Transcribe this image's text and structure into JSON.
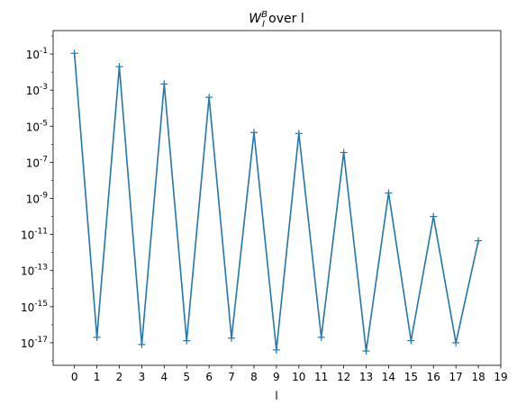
{
  "chart_data": {
    "type": "line",
    "title": {
      "main": "W",
      "sub": "l",
      "sup": "B",
      "rest": " over l"
    },
    "xlabel": "l",
    "ylabel": "",
    "yscale": "log",
    "xlim": [
      -0.95,
      19.0
    ],
    "ylim_exp": [
      -18.25,
      0.3
    ],
    "x_ticks": [
      "0",
      "1",
      "2",
      "3",
      "4",
      "5",
      "6",
      "7",
      "8",
      "9",
      "10",
      "11",
      "12",
      "13",
      "14",
      "15",
      "16",
      "17",
      "18",
      "19"
    ],
    "y_ticks": [
      {
        "base": "10",
        "exp": "-1",
        "value_exp": -1
      },
      {
        "base": "10",
        "exp": "-3",
        "value_exp": -3
      },
      {
        "base": "10",
        "exp": "-5",
        "value_exp": -5
      },
      {
        "base": "10",
        "exp": "-7",
        "value_exp": -7
      },
      {
        "base": "10",
        "exp": "-9",
        "value_exp": -9
      },
      {
        "base": "10",
        "exp": "-11",
        "value_exp": -11
      },
      {
        "base": "10",
        "exp": "-13",
        "value_exp": -13
      },
      {
        "base": "10",
        "exp": "-15",
        "value_exp": -15
      },
      {
        "base": "10",
        "exp": "-17",
        "value_exp": -17
      }
    ],
    "grid": false,
    "marker": "+",
    "series": [
      {
        "color": "#1f77b4",
        "x": [
          0,
          1,
          2,
          3,
          4,
          5,
          6,
          7,
          8,
          9,
          10,
          11,
          12,
          13,
          14,
          15,
          16,
          17,
          18
        ],
        "y": [
          0.11,
          2e-17,
          0.02,
          8e-18,
          0.0022,
          1.3e-17,
          0.0004,
          1.8e-17,
          4.5e-06,
          4e-18,
          4e-06,
          2e-17,
          3.5e-07,
          3.5e-18,
          2e-09,
          1.3e-17,
          1e-10,
          1e-17,
          4.5e-12
        ]
      }
    ]
  }
}
